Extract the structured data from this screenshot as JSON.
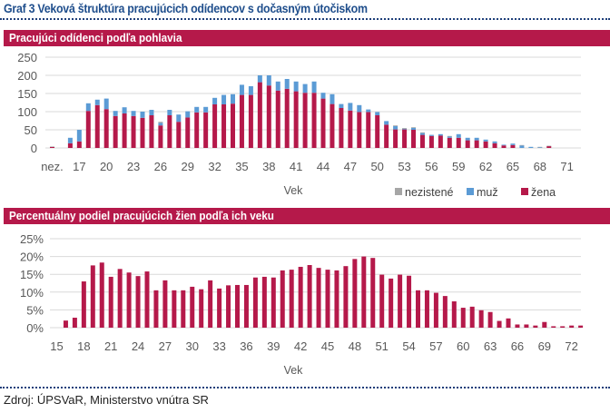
{
  "figure_title": "Graf 3 Veková štruktúra pracujúcich odídencov s dočasným útočiskom",
  "source": "Zdroj: ÚPSVaR, Ministerstvo vnútra SR",
  "colors": {
    "zena": "#b5194a",
    "muz": "#5b9bd5",
    "nezistene": "#a6a6a6",
    "header": "#b5194a",
    "title": "#1f4e8c",
    "grid": "#d9d9d9",
    "tick": "#595959"
  },
  "chart_data": [
    {
      "type": "bar",
      "stacked": true,
      "title": "Pracujúci odídenci podľa pohlavia",
      "xlabel": "Vek",
      "ylabel": "",
      "ylim": [
        0,
        250
      ],
      "yticks": [
        0,
        50,
        100,
        150,
        200,
        250
      ],
      "grid": true,
      "legend_position": "bottom-right",
      "categories": [
        "nez.",
        "15",
        "16",
        "17",
        "18",
        "19",
        "20",
        "21",
        "22",
        "23",
        "24",
        "25",
        "26",
        "27",
        "28",
        "29",
        "30",
        "31",
        "32",
        "33",
        "34",
        "35",
        "36",
        "37",
        "38",
        "39",
        "40",
        "41",
        "42",
        "43",
        "44",
        "45",
        "46",
        "47",
        "48",
        "49",
        "50",
        "51",
        "52",
        "53",
        "54",
        "55",
        "56",
        "57",
        "58",
        "59",
        "60",
        "61",
        "62",
        "63",
        "64",
        "65",
        "66",
        "67",
        "68",
        "69",
        "70",
        "71"
      ],
      "xtick_labels": [
        "nez.",
        "17",
        "20",
        "23",
        "26",
        "29",
        "32",
        "35",
        "38",
        "41",
        "44",
        "47",
        "50",
        "53",
        "56",
        "59",
        "62",
        "65",
        "68",
        "71"
      ],
      "series": [
        {
          "name": "žena",
          "color": "#b5194a",
          "values": [
            3,
            0,
            13,
            18,
            102,
            118,
            107,
            88,
            95,
            88,
            83,
            90,
            62,
            90,
            72,
            84,
            98,
            98,
            120,
            120,
            122,
            146,
            146,
            181,
            172,
            158,
            163,
            156,
            152,
            152,
            136,
            121,
            110,
            103,
            99,
            99,
            90,
            64,
            51,
            51,
            50,
            36,
            33,
            34,
            28,
            28,
            21,
            21,
            18,
            13,
            7,
            8,
            0,
            0,
            0,
            5,
            0,
            0
          ]
        },
        {
          "name": "muž",
          "color": "#5b9bd5",
          "values": [
            0,
            0,
            15,
            32,
            21,
            15,
            29,
            14,
            17,
            14,
            17,
            15,
            7,
            15,
            20,
            17,
            15,
            15,
            18,
            26,
            26,
            28,
            24,
            19,
            28,
            25,
            27,
            27,
            24,
            31,
            16,
            27,
            11,
            21,
            19,
            7,
            9,
            10,
            9,
            2,
            5,
            5,
            3,
            4,
            4,
            10,
            7,
            7,
            5,
            5,
            2,
            4,
            7,
            3,
            2,
            0,
            0,
            0
          ]
        },
        {
          "name": "nezistené",
          "color": "#a6a6a6",
          "values": [
            1,
            0,
            0,
            0,
            0,
            0,
            0,
            0,
            0,
            0,
            0,
            0,
            3,
            0,
            0,
            0,
            0,
            0,
            0,
            0,
            0,
            0,
            0,
            0,
            0,
            0,
            0,
            0,
            0,
            0,
            0,
            0,
            0,
            0,
            0,
            0,
            0,
            0,
            2,
            2,
            2,
            2,
            0,
            0,
            1,
            0,
            0,
            0,
            0,
            0,
            0,
            0,
            1,
            0,
            1,
            1,
            0,
            0
          ]
        }
      ]
    },
    {
      "type": "bar",
      "title": "Percentuálny podiel pracujúcich žien podľa ich veku",
      "xlabel": "Vek",
      "ylabel": "",
      "ylim": [
        0,
        25
      ],
      "yticks": [
        "0%",
        "5%",
        "10%",
        "15%",
        "20%",
        "25%"
      ],
      "grid": true,
      "categories": [
        "15",
        "16",
        "17",
        "18",
        "19",
        "20",
        "21",
        "22",
        "23",
        "24",
        "25",
        "26",
        "27",
        "28",
        "29",
        "30",
        "31",
        "32",
        "33",
        "34",
        "35",
        "36",
        "37",
        "38",
        "39",
        "40",
        "41",
        "42",
        "43",
        "44",
        "45",
        "46",
        "47",
        "48",
        "49",
        "50",
        "51",
        "52",
        "53",
        "54",
        "55",
        "56",
        "57",
        "58",
        "59",
        "60",
        "61",
        "62",
        "63",
        "64",
        "65",
        "66",
        "67",
        "68",
        "69",
        "70",
        "71",
        "72",
        "73"
      ],
      "xtick_labels": [
        "15",
        "18",
        "21",
        "24",
        "27",
        "30",
        "33",
        "36",
        "39",
        "42",
        "45",
        "48",
        "51",
        "54",
        "57",
        "60",
        "63",
        "66",
        "69",
        "72"
      ],
      "series": [
        {
          "name": "žena (%)",
          "color": "#b5194a",
          "values": [
            0,
            2.0,
            2.8,
            13.0,
            17.5,
            18.3,
            14.3,
            16.5,
            15.5,
            14.5,
            15.8,
            10.5,
            13.3,
            10.5,
            10.5,
            11.5,
            10.8,
            13.3,
            11.0,
            11.9,
            12.0,
            12.0,
            14.1,
            14.3,
            14.1,
            16.1,
            16.3,
            17.1,
            17.6,
            16.8,
            16.3,
            16.1,
            17.3,
            19.3,
            20.0,
            19.6,
            14.9,
            13.8,
            14.9,
            14.6,
            10.5,
            10.5,
            9.8,
            8.9,
            7.4,
            5.6,
            5.9,
            4.9,
            4.4,
            1.9,
            2.6,
            0.9,
            0.9,
            0.6,
            1.6,
            0.4,
            0.4,
            0.6,
            0.6
          ]
        }
      ]
    }
  ]
}
